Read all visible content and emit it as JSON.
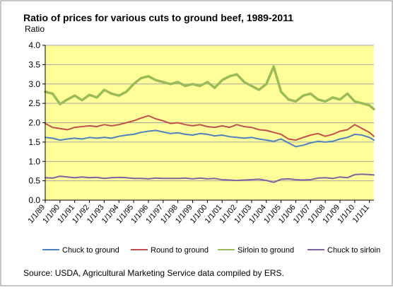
{
  "chart_data": {
    "type": "line",
    "title": "Ratio of prices for various cuts to ground beef, 1989-2011",
    "ylabel": "Ratio",
    "xlabel": "",
    "ylim": [
      0,
      4
    ],
    "yticks": [
      "0.0",
      "0.5",
      "1.0",
      "1.5",
      "2.0",
      "2.5",
      "3.0",
      "3.5",
      "4.0"
    ],
    "xlim": [
      1989.0,
      2011.3
    ],
    "x_tick_labels": [
      "1/1/89",
      "1/1/90",
      "1/1/91",
      "1/1/92",
      "1/1/93",
      "1/1/94",
      "1/1/95",
      "1/1/96",
      "1/1/97",
      "1/1/98",
      "1/1/99",
      "1/1/00",
      "1/1/01",
      "1/1/02",
      "1/1/03",
      "1/1/04",
      "1/1/05",
      "1/1/06",
      "1/1/07",
      "1/1/08",
      "1/1/09",
      "1/1/10",
      "1/1/11"
    ],
    "x_tick_values": [
      1989,
      1990,
      1991,
      1992,
      1993,
      1994,
      1995,
      1996,
      1997,
      1998,
      1999,
      2000,
      2001,
      2002,
      2003,
      2004,
      2005,
      2006,
      2007,
      2008,
      2009,
      2010,
      2011
    ],
    "grid": true,
    "legend_position": "bottom",
    "plot_background": "#ffff99",
    "series": [
      {
        "name": "Chuck to ground",
        "color": "#4f81bd",
        "x": [
          1989.0,
          1989.5,
          1990.0,
          1990.5,
          1991.0,
          1991.5,
          1992.0,
          1992.5,
          1993.0,
          1993.5,
          1994.0,
          1994.5,
          1995.0,
          1995.5,
          1996.0,
          1996.5,
          1997.0,
          1997.5,
          1998.0,
          1998.5,
          1999.0,
          1999.5,
          2000.0,
          2000.5,
          2001.0,
          2001.5,
          2002.0,
          2002.5,
          2003.0,
          2003.5,
          2004.0,
          2004.5,
          2005.0,
          2005.5,
          2006.0,
          2006.5,
          2007.0,
          2007.5,
          2008.0,
          2008.5,
          2009.0,
          2009.5,
          2010.0,
          2010.5,
          2011.0,
          2011.3
        ],
        "values": [
          1.62,
          1.6,
          1.55,
          1.58,
          1.6,
          1.58,
          1.62,
          1.6,
          1.62,
          1.6,
          1.65,
          1.68,
          1.7,
          1.75,
          1.78,
          1.8,
          1.76,
          1.72,
          1.74,
          1.7,
          1.68,
          1.72,
          1.7,
          1.66,
          1.68,
          1.64,
          1.62,
          1.6,
          1.62,
          1.58,
          1.55,
          1.52,
          1.58,
          1.48,
          1.38,
          1.42,
          1.48,
          1.52,
          1.5,
          1.52,
          1.58,
          1.62,
          1.7,
          1.68,
          1.62,
          1.55
        ]
      },
      {
        "name": "Round to ground",
        "color": "#c0504d",
        "x": [
          1989.0,
          1989.5,
          1990.0,
          1990.5,
          1991.0,
          1991.5,
          1992.0,
          1992.5,
          1993.0,
          1993.5,
          1994.0,
          1994.5,
          1995.0,
          1995.5,
          1996.0,
          1996.5,
          1997.0,
          1997.5,
          1998.0,
          1998.5,
          1999.0,
          1999.5,
          2000.0,
          2000.5,
          2001.0,
          2001.5,
          2002.0,
          2002.5,
          2003.0,
          2003.5,
          2004.0,
          2004.5,
          2005.0,
          2005.5,
          2006.0,
          2006.5,
          2007.0,
          2007.5,
          2008.0,
          2008.5,
          2009.0,
          2009.5,
          2010.0,
          2010.5,
          2011.0,
          2011.3
        ],
        "values": [
          1.98,
          1.88,
          1.85,
          1.82,
          1.88,
          1.9,
          1.92,
          1.9,
          1.95,
          1.92,
          1.95,
          2.0,
          2.05,
          2.12,
          2.18,
          2.1,
          2.05,
          1.98,
          2.0,
          1.95,
          1.92,
          1.95,
          1.9,
          1.88,
          1.92,
          1.88,
          1.95,
          1.9,
          1.88,
          1.82,
          1.8,
          1.75,
          1.7,
          1.58,
          1.55,
          1.62,
          1.68,
          1.72,
          1.65,
          1.7,
          1.78,
          1.82,
          1.95,
          1.85,
          1.75,
          1.65
        ]
      },
      {
        "name": "Sirloin to ground",
        "color": "#9bbb59",
        "x": [
          1989.0,
          1989.5,
          1990.0,
          1990.5,
          1991.0,
          1991.5,
          1992.0,
          1992.5,
          1993.0,
          1993.5,
          1994.0,
          1994.5,
          1995.0,
          1995.5,
          1996.0,
          1996.5,
          1997.0,
          1997.5,
          1998.0,
          1998.5,
          1999.0,
          1999.5,
          2000.0,
          2000.5,
          2001.0,
          2001.5,
          2002.0,
          2002.5,
          2003.0,
          2003.5,
          2004.0,
          2004.5,
          2005.0,
          2005.5,
          2006.0,
          2006.5,
          2007.0,
          2007.5,
          2008.0,
          2008.5,
          2009.0,
          2009.5,
          2010.0,
          2010.5,
          2011.0,
          2011.3
        ],
        "values": [
          2.8,
          2.75,
          2.48,
          2.6,
          2.7,
          2.58,
          2.72,
          2.65,
          2.85,
          2.75,
          2.7,
          2.8,
          3.0,
          3.15,
          3.2,
          3.1,
          3.05,
          3.0,
          3.05,
          2.95,
          3.0,
          2.95,
          3.05,
          2.9,
          3.1,
          3.2,
          3.25,
          3.05,
          2.95,
          2.85,
          3.0,
          3.45,
          2.8,
          2.6,
          2.55,
          2.7,
          2.75,
          2.6,
          2.55,
          2.65,
          2.6,
          2.75,
          2.55,
          2.5,
          2.45,
          2.35
        ]
      },
      {
        "name": "Chuck to sirloin",
        "color": "#8064a2",
        "x": [
          1989.0,
          1989.5,
          1990.0,
          1990.5,
          1991.0,
          1991.5,
          1992.0,
          1992.5,
          1993.0,
          1993.5,
          1994.0,
          1994.5,
          1995.0,
          1995.5,
          1996.0,
          1996.5,
          1997.0,
          1997.5,
          1998.0,
          1998.5,
          1999.0,
          1999.5,
          2000.0,
          2000.5,
          2001.0,
          2001.5,
          2002.0,
          2002.5,
          2003.0,
          2003.5,
          2004.0,
          2004.5,
          2005.0,
          2005.5,
          2006.0,
          2006.5,
          2007.0,
          2007.5,
          2008.0,
          2008.5,
          2009.0,
          2009.5,
          2010.0,
          2010.5,
          2011.0,
          2011.3
        ],
        "values": [
          0.58,
          0.57,
          0.62,
          0.6,
          0.58,
          0.6,
          0.58,
          0.59,
          0.56,
          0.58,
          0.59,
          0.58,
          0.56,
          0.56,
          0.55,
          0.57,
          0.56,
          0.56,
          0.56,
          0.57,
          0.55,
          0.57,
          0.55,
          0.56,
          0.53,
          0.52,
          0.51,
          0.52,
          0.53,
          0.54,
          0.51,
          0.46,
          0.54,
          0.55,
          0.53,
          0.52,
          0.53,
          0.57,
          0.58,
          0.56,
          0.6,
          0.58,
          0.66,
          0.67,
          0.66,
          0.65
        ]
      }
    ]
  },
  "source_note": "Source: USDA, Agricultural Marketing Service data compiled by ERS."
}
